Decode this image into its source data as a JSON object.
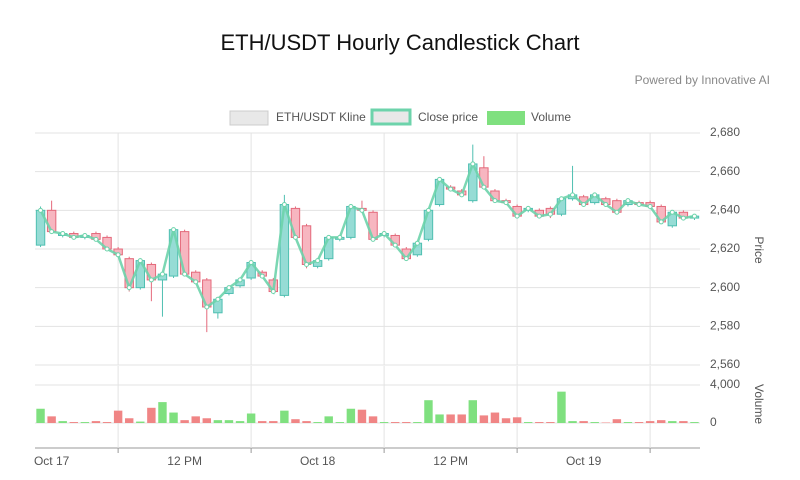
{
  "chart_data": {
    "type": "candlestick",
    "title": "ETH/USDT Hourly Candlestick Chart",
    "subtitle": "Powered by Innovative AI",
    "categories": [
      null,
      "Oct 17",
      null,
      null,
      null,
      null,
      null,
      null,
      null,
      null,
      null,
      null,
      null,
      "12 PM",
      null,
      null,
      null,
      null,
      null,
      null,
      null,
      null,
      null,
      null,
      null,
      "Oct 18",
      null,
      null,
      null,
      null,
      null,
      null,
      null,
      null,
      null,
      null,
      null,
      "12 PM",
      null,
      null,
      null,
      null,
      null,
      null,
      null,
      null,
      null,
      null,
      null,
      "Oct 19",
      null,
      null,
      null,
      null,
      null,
      null,
      null,
      null,
      null,
      null
    ],
    "kline": {
      "name": "ETH/USDT Kline",
      "up_color": "#96dcd5",
      "up_border": "#4fbfb1",
      "down_color": "#f7b6c0",
      "down_border": "#e4697b",
      "open": [
        2622,
        2640,
        2627,
        2628,
        2626,
        2628,
        2626,
        2620,
        2615,
        2600,
        2612,
        2604,
        2606,
        2629,
        2608,
        2604,
        2587,
        2597,
        2601,
        2605,
        2608,
        2604,
        2596,
        2641,
        2632,
        2611,
        2615,
        2625,
        2626,
        2641,
        2639,
        2627,
        2627,
        2620,
        2617,
        2625,
        2643,
        2652,
        2650,
        2645,
        2662,
        2650,
        2645,
        2642,
        2640,
        2640,
        2641,
        2638,
        2646,
        2647,
        2644,
        2646,
        2645,
        2643,
        2644,
        2644,
        2642,
        2632,
        2639,
        2636
      ],
      "high": [
        2642,
        2645,
        2629,
        2629,
        2628,
        2629,
        2627,
        2621,
        2616,
        2614,
        2613,
        2607,
        2631,
        2630,
        2609,
        2605,
        2595,
        2601,
        2605,
        2614,
        2609,
        2605,
        2648,
        2642,
        2633,
        2615,
        2627,
        2627,
        2643,
        2645,
        2640,
        2629,
        2628,
        2621,
        2624,
        2641,
        2657,
        2653,
        2651,
        2674,
        2668,
        2651,
        2646,
        2643,
        2642,
        2641,
        2642,
        2647,
        2663,
        2648,
        2649,
        2647,
        2646,
        2646,
        2645,
        2645,
        2643,
        2640,
        2640,
        2638
      ],
      "low": [
        2621,
        2628,
        2626,
        2625,
        2625,
        2624,
        2619,
        2616,
        2598,
        2599,
        2593,
        2585,
        2605,
        2606,
        2602,
        2577,
        2584,
        2596,
        2600,
        2604,
        2605,
        2597,
        2595,
        2625,
        2610,
        2610,
        2614,
        2624,
        2625,
        2639,
        2624,
        2626,
        2621,
        2614,
        2616,
        2624,
        2642,
        2650,
        2647,
        2644,
        2651,
        2644,
        2643,
        2636,
        2639,
        2636,
        2636,
        2637,
        2645,
        2642,
        2643,
        2642,
        2638,
        2642,
        2642,
        2641,
        2633,
        2631,
        2635,
        2635
      ],
      "close": [
        2640,
        2629,
        2628,
        2626,
        2627,
        2625,
        2620,
        2617,
        2600,
        2614,
        2604,
        2607,
        2630,
        2607,
        2603,
        2590,
        2594,
        2600,
        2604,
        2613,
        2606,
        2598,
        2643,
        2626,
        2612,
        2614,
        2626,
        2626,
        2642,
        2640,
        2625,
        2628,
        2622,
        2615,
        2623,
        2640,
        2656,
        2651,
        2648,
        2664,
        2652,
        2645,
        2644,
        2637,
        2641,
        2637,
        2638,
        2646,
        2648,
        2643,
        2648,
        2643,
        2639,
        2645,
        2643,
        2642,
        2634,
        2639,
        2636,
        2637
      ]
    },
    "close_line": {
      "name": "Close price",
      "color": "#6dd3ab"
    },
    "volume": {
      "name": "Volume",
      "up_color": "#7fe07f",
      "down_color": "#f08585",
      "values": [
        1500,
        700,
        200,
        100,
        100,
        200,
        100,
        1300,
        500,
        150,
        1600,
        2200,
        1100,
        300,
        700,
        500,
        300,
        300,
        200,
        1000,
        200,
        200,
        1300,
        400,
        200,
        100,
        700,
        100,
        1500,
        1400,
        700,
        100,
        100,
        100,
        100,
        2400,
        900,
        900,
        900,
        2400,
        800,
        1100,
        500,
        600,
        100,
        100,
        100,
        3300,
        200,
        200,
        100,
        50,
        400,
        100,
        100,
        200,
        300,
        200,
        200,
        100
      ],
      "ylim": [
        -2000,
        4000
      ],
      "yticks": [
        0,
        {
          "value": 4000,
          "label": "4,000"
        }
      ],
      "axis_title": "Volume"
    },
    "ylim": [
      2560,
      2680
    ],
    "yticks": [
      {
        "value": 2560,
        "label": "2,560"
      },
      {
        "value": 2580,
        "label": "2,580"
      },
      {
        "value": 2600,
        "label": "2,600"
      },
      {
        "value": 2620,
        "label": "2,620"
      },
      {
        "value": 2640,
        "label": "2,640"
      },
      {
        "value": 2660,
        "label": "2,660"
      },
      {
        "value": 2680,
        "label": "2,680"
      }
    ],
    "y_axis_title": "Price",
    "grid": true
  }
}
